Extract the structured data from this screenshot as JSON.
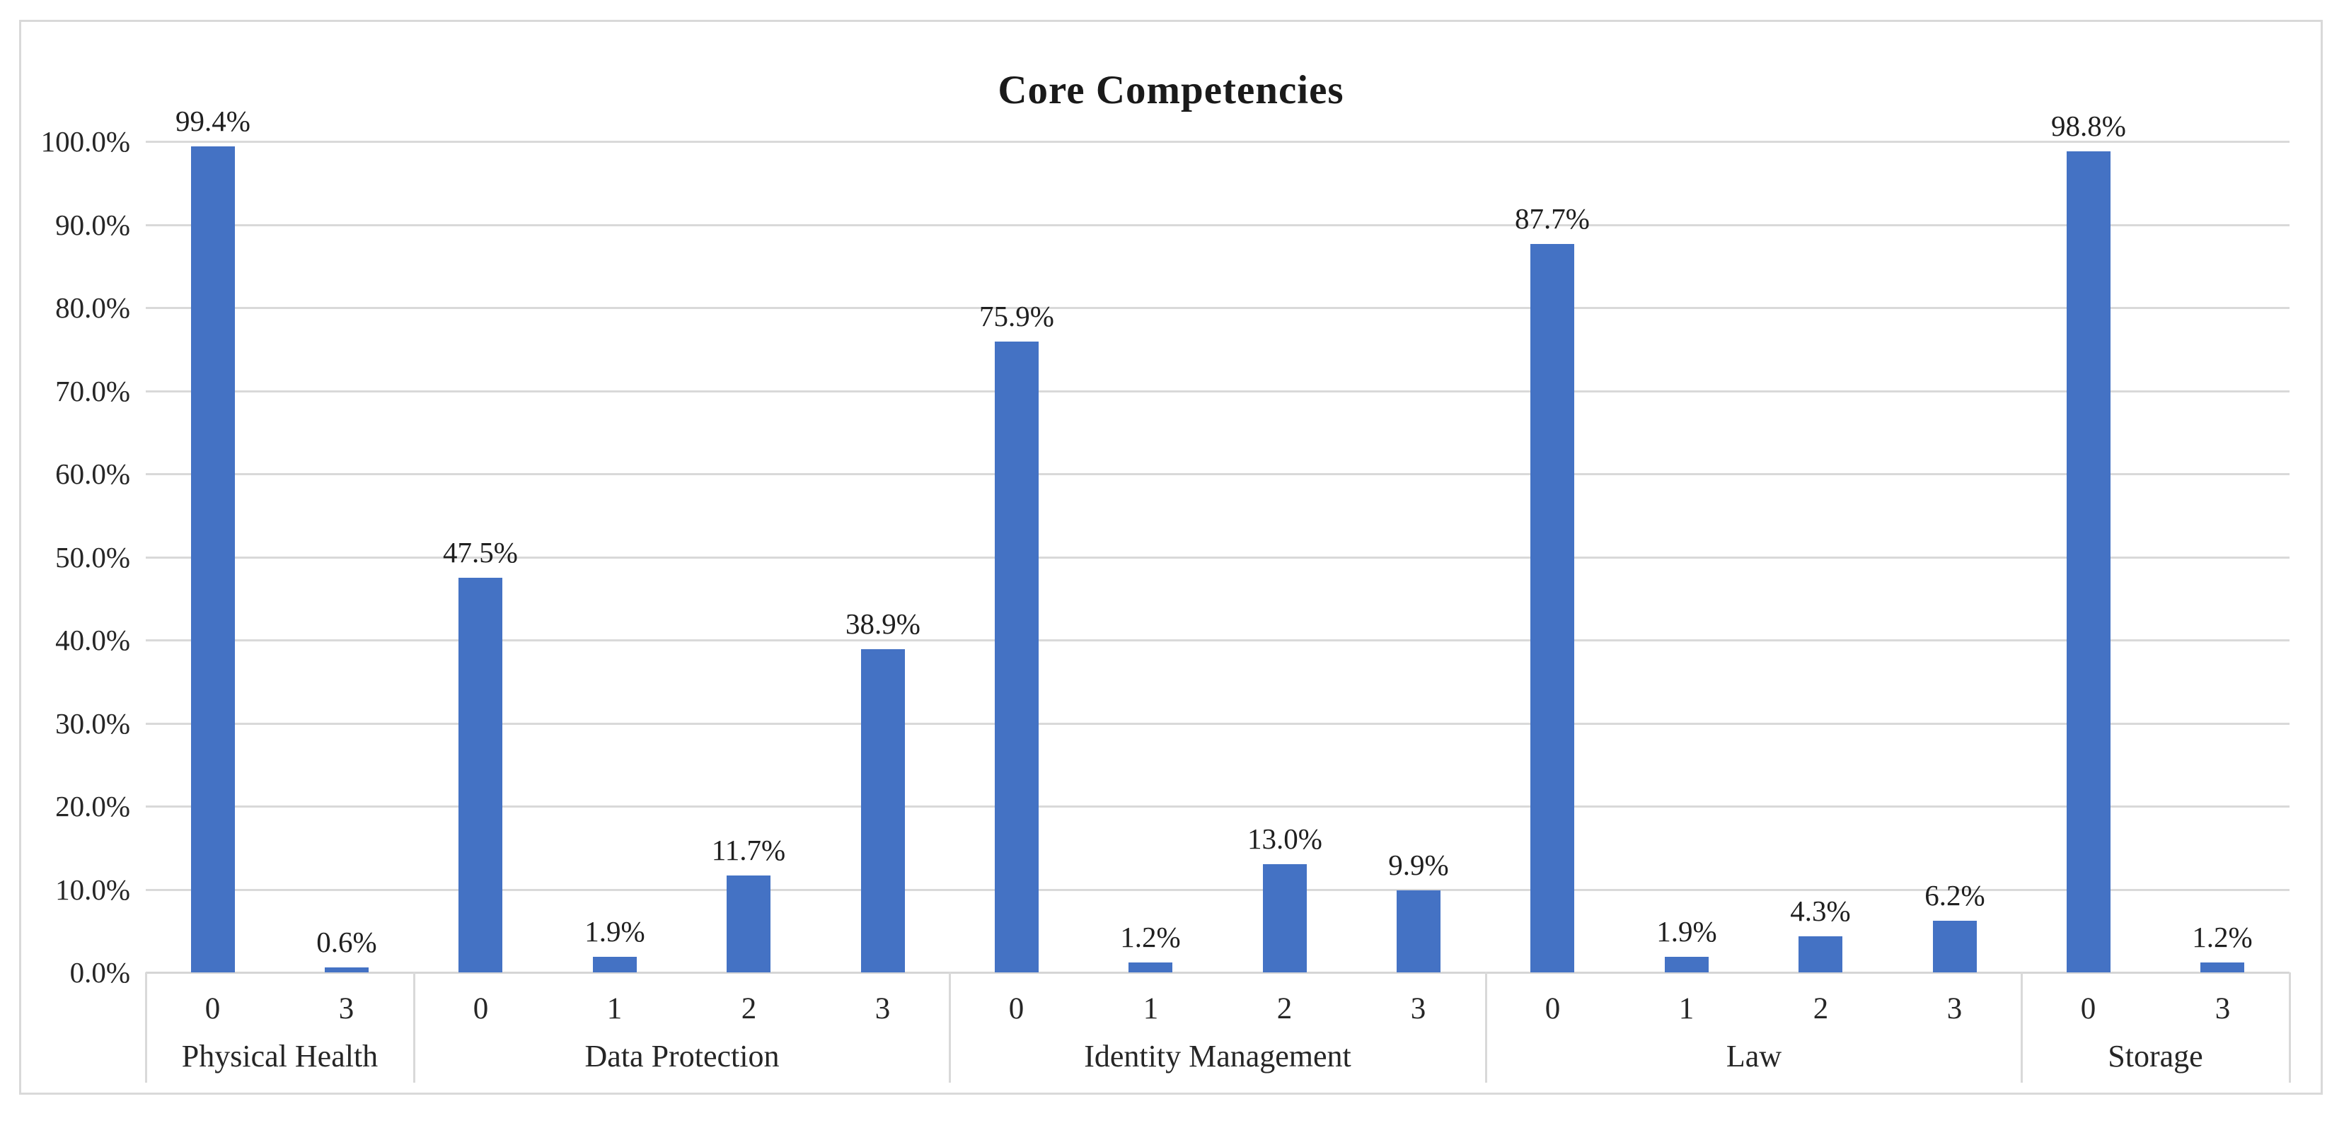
{
  "chart_data": {
    "type": "bar",
    "title": "Core Competencies",
    "legend": "none",
    "grid": "horizontal",
    "bar_color": "#4472c4",
    "gridline_color": "#d9d9d9",
    "y_axis": {
      "min": 0,
      "max": 100,
      "step": 10,
      "tick_labels_top_to_bottom": [
        "100.0%",
        "90.0%",
        "80.0%",
        "70.0%",
        "60.0%",
        "50.0%",
        "40.0%",
        "30.0%",
        "20.0%",
        "10.0%",
        "0.0%"
      ]
    },
    "groups": [
      {
        "label": "Physical Health",
        "categories": [
          "0",
          "3"
        ],
        "values": [
          99.4,
          0.6
        ],
        "value_labels": [
          "99.4%",
          "0.6%"
        ]
      },
      {
        "label": "Data Protection",
        "categories": [
          "0",
          "1",
          "2",
          "3"
        ],
        "values": [
          47.5,
          1.9,
          11.7,
          38.9
        ],
        "value_labels": [
          "47.5%",
          "1.9%",
          "11.7%",
          "38.9%"
        ]
      },
      {
        "label": "Identity Management",
        "categories": [
          "0",
          "1",
          "2",
          "3"
        ],
        "values": [
          75.9,
          1.2,
          13.0,
          9.9
        ],
        "value_labels": [
          "75.9%",
          "1.2%",
          "13.0%",
          "9.9%"
        ]
      },
      {
        "label": "Law",
        "categories": [
          "0",
          "1",
          "2",
          "3"
        ],
        "values": [
          87.7,
          1.9,
          4.3,
          6.2
        ],
        "value_labels": [
          "87.7%",
          "1.9%",
          "4.3%",
          "6.2%"
        ]
      },
      {
        "label": "Storage",
        "categories": [
          "0",
          "3"
        ],
        "values": [
          98.8,
          1.2
        ],
        "value_labels": [
          "98.8%",
          "1.2%"
        ]
      }
    ]
  }
}
